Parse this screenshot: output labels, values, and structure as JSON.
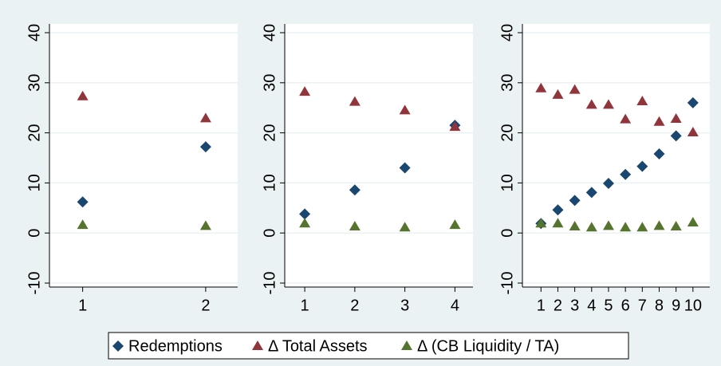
{
  "chart_data": [
    {
      "type": "scatter",
      "x": [
        1,
        2
      ],
      "xlim": [
        0.73,
        2.26
      ],
      "xticks": [
        1,
        2
      ],
      "ylim": [
        -10,
        40
      ],
      "yticks": [
        -10,
        0,
        10,
        20,
        30,
        40
      ],
      "grid": true,
      "series": [
        {
          "name": "Redemptions",
          "color": "#1a476f",
          "marker": "diamond",
          "values": [
            6.2,
            17.2
          ]
        },
        {
          "name": "Δ Total Assets",
          "color": "#90353b",
          "marker": "triangle",
          "values": [
            27.3,
            22.9
          ]
        },
        {
          "name": "Δ (CB Liquidity / TA)",
          "color": "#55752f",
          "marker": "triangle",
          "values": [
            1.6,
            1.4
          ]
        }
      ]
    },
    {
      "type": "scatter",
      "x": [
        1,
        2,
        3,
        4
      ],
      "xlim": [
        0.6,
        4.36
      ],
      "xticks": [
        1,
        2,
        3,
        4
      ],
      "ylim": [
        -10,
        40
      ],
      "yticks": [
        -10,
        0,
        10,
        20,
        30,
        40
      ],
      "grid": true,
      "series": [
        {
          "name": "Redemptions",
          "color": "#1a476f",
          "marker": "diamond",
          "values": [
            3.8,
            8.6,
            13,
            21.5
          ]
        },
        {
          "name": "Δ Total Assets",
          "color": "#90353b",
          "marker": "triangle",
          "values": [
            28.2,
            26.2,
            24.5,
            21.2
          ]
        },
        {
          "name": "Δ (CB Liquidity / TA)",
          "color": "#55752f",
          "marker": "triangle",
          "values": [
            1.9,
            1.3,
            1.1,
            1.6
          ]
        }
      ]
    },
    {
      "type": "scatter",
      "x": [
        1,
        2,
        3,
        4,
        5,
        6,
        7,
        8,
        9,
        10
      ],
      "xlim": [
        -0.1,
        11
      ],
      "xticks": [
        1,
        2,
        3,
        4,
        5,
        6,
        7,
        8,
        9,
        10
      ],
      "ylim": [
        -10,
        40
      ],
      "yticks": [
        -10,
        0,
        10,
        20,
        30,
        40
      ],
      "grid": true,
      "series": [
        {
          "name": "Redemptions",
          "color": "#1a476f",
          "marker": "diamond",
          "values": [
            1.9,
            4.6,
            6.5,
            8.1,
            9.9,
            11.7,
            13.3,
            15.8,
            19.4,
            26
          ]
        },
        {
          "name": "Δ Total Assets",
          "color": "#90353b",
          "marker": "triangle",
          "values": [
            28.9,
            27.6,
            28.6,
            25.6,
            25.6,
            22.7,
            26.3,
            22.2,
            22.8,
            20.1
          ]
        },
        {
          "name": "Δ (CB Liquidity / TA)",
          "color": "#55752f",
          "marker": "triangle",
          "values": [
            1.9,
            1.9,
            1.3,
            1.1,
            1.4,
            1.1,
            1.1,
            1.4,
            1.3,
            2.1
          ]
        }
      ]
    }
  ]
}
